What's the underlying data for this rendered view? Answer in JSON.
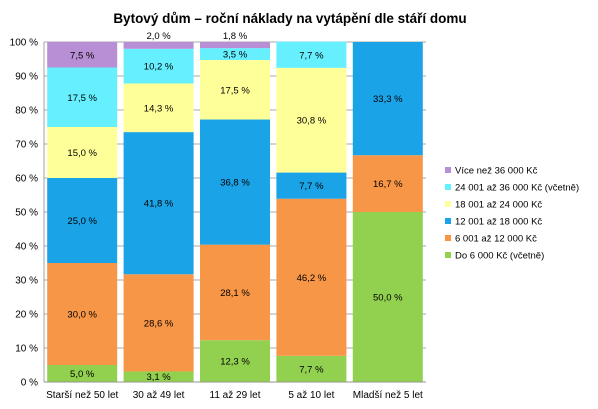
{
  "chart_data": {
    "type": "bar",
    "stacked": true,
    "title": "Bytový dům – roční náklady na vytápění dle stáří domu",
    "xlabel": "",
    "ylabel": "",
    "ylim": [
      0,
      100
    ],
    "y_ticks": [
      0,
      10,
      20,
      30,
      40,
      50,
      60,
      70,
      80,
      90,
      100
    ],
    "y_tick_labels": [
      "0 %",
      "10 %",
      "20 %",
      "30 %",
      "40 %",
      "50 %",
      "60 %",
      "70 %",
      "80 %",
      "90 %",
      "100 %"
    ],
    "grid": true,
    "legend_position": "right",
    "categories": [
      "Starší než 50 let",
      "30 až 49 let",
      "11 až 29 let",
      "5 až 10 let",
      "Mladší než 5 let"
    ],
    "series": [
      {
        "name": "Do 6 000 Kč (včetně)",
        "color": "#92d050",
        "values": [
          5.0,
          3.1,
          12.3,
          7.7,
          50.0
        ],
        "labels": [
          "5,0 %",
          "3,1 %",
          "12,3 %",
          "7,7 %",
          "50,0 %"
        ]
      },
      {
        "name": "6 001 až 12 000 Kč",
        "color": "#f79646",
        "values": [
          30.0,
          28.6,
          28.1,
          46.2,
          16.7
        ],
        "labels": [
          "30,0 %",
          "28,6 %",
          "28,1 %",
          "46,2 %",
          "16,7 %"
        ]
      },
      {
        "name": "12 001 až 18 000 Kč",
        "color": "#1aa3e6",
        "values": [
          25.0,
          41.8,
          36.8,
          7.7,
          33.3
        ],
        "labels": [
          "25,0 %",
          "41,8 %",
          "36,8 %",
          "7,7 %",
          "33,3 %"
        ]
      },
      {
        "name": "18 001 až 24 000 Kč",
        "color": "#ffff99",
        "values": [
          15.0,
          14.3,
          17.5,
          30.8,
          0
        ],
        "labels": [
          "15,0 %",
          "14,3 %",
          "17,5 %",
          "30,8 %",
          ""
        ]
      },
      {
        "name": "24 001 až 36 000 Kč (včetně)",
        "color": "#66f0ff",
        "values": [
          17.5,
          10.2,
          3.5,
          7.7,
          0
        ],
        "labels": [
          "17,5 %",
          "10,2 %",
          "3,5 %",
          "7,7 %",
          ""
        ]
      },
      {
        "name": "Více než 36 000 Kč",
        "color": "#b88fd4",
        "values": [
          7.5,
          2.0,
          1.8,
          0,
          0
        ],
        "labels": [
          "7,5 %",
          "2,0 %",
          "1,8 %",
          "",
          ""
        ]
      }
    ]
  }
}
